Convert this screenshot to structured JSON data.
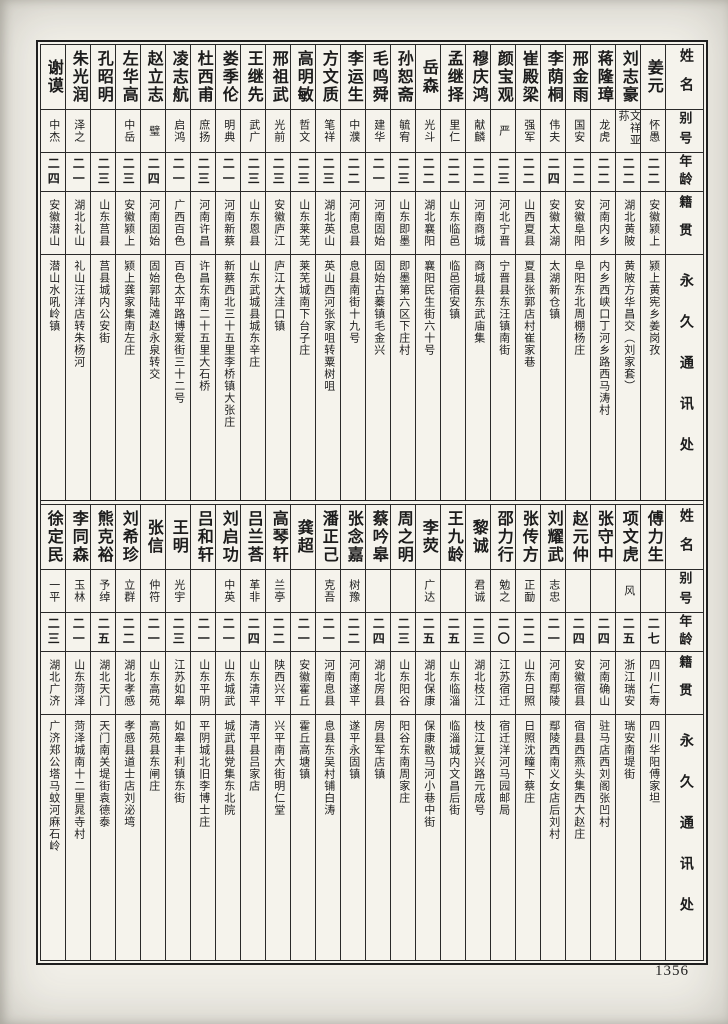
{
  "page": {
    "number": "1356"
  },
  "colors": {
    "ink": "#1c1c1c",
    "paper": "#f5f3ec"
  },
  "headers": {
    "name": "姓名",
    "alias": "别号",
    "age": "年龄",
    "native": "籍贯",
    "address": "永久通讯处"
  },
  "tables": [
    {
      "people": [
        {
          "name": "姜元",
          "alias": "怀愚",
          "age": "二二",
          "native": "安徽颍上",
          "address": "颍上黄宪乡姜岗孜"
        },
        {
          "name": "刘志豪",
          "alias": "文祥亚荪",
          "age": "二二",
          "native": "湖北黄陂",
          "address": "黄陂方华昌交（刘家套）"
        },
        {
          "name": "蒋隆璋",
          "alias": "龙虎",
          "age": "二二",
          "native": "河南内乡",
          "address": "内乡西峡口丁河乡路西马涛村"
        },
        {
          "name": "邢金雨",
          "alias": "国安",
          "age": "二二",
          "native": "安徽阜阳",
          "address": "阜阳东北周棚杨庄"
        },
        {
          "name": "李荫桐",
          "alias": "伟夫",
          "age": "二四",
          "native": "安徽太湖",
          "address": "太湖新仓镇"
        },
        {
          "name": "崔殿梁",
          "alias": "强军",
          "age": "二二",
          "native": "山西夏县",
          "address": "夏县张郭店村崔家巷"
        },
        {
          "name": "颜宝观",
          "alias": "严",
          "age": "二三",
          "native": "河北宁晋",
          "address": "宁晋县东汪镇南街"
        },
        {
          "name": "穆庆鸿",
          "alias": "献麟",
          "age": "二二",
          "native": "河南商城",
          "address": "商城县东武庙集"
        },
        {
          "name": "孟继择",
          "alias": "里仁",
          "age": "二二",
          "native": "山东临邑",
          "address": "临邑宿安镇"
        },
        {
          "name": "岳森",
          "alias": "光斗",
          "age": "二二",
          "native": "湖北襄阳",
          "address": "襄阳民生街六十号"
        },
        {
          "name": "孙恕斋",
          "alias": "毓宥",
          "age": "二三",
          "native": "山东即墨",
          "address": "即墨第六区下庄村"
        },
        {
          "name": "毛鸣舜",
          "alias": "建华",
          "age": "二一",
          "native": "河南固始",
          "address": "固始古蓁镇毛金兴"
        },
        {
          "name": "李运生",
          "alias": "中濮",
          "age": "二二",
          "native": "河南息县",
          "address": "息县南街十九号"
        },
        {
          "name": "方文质",
          "alias": "笔祥",
          "age": "二三",
          "native": "湖北英山",
          "address": "英山西河张家咀转粟树咀"
        },
        {
          "name": "高明敏",
          "alias": "哲文",
          "age": "二三",
          "native": "山东莱芜",
          "address": "莱芜城南下台子庄"
        },
        {
          "name": "邢祖武",
          "alias": "光前",
          "age": "二三",
          "native": "安徽庐江",
          "address": "庐江大洼口镇"
        },
        {
          "name": "王继先",
          "alias": "武广",
          "age": "二三",
          "native": "山东恩县",
          "address": "山东武城县城东辛庄"
        },
        {
          "name": "娄季伦",
          "alias": "明典",
          "age": "二一",
          "native": "河南新蔡",
          "address": "新蔡西北三十五里李桥镇大张庄"
        },
        {
          "name": "杜西甫",
          "alias": "庶扬",
          "age": "二三",
          "native": "河南许昌",
          "address": "许昌东南二十五里大石桥"
        },
        {
          "name": "凌志航",
          "alias": "启鸿",
          "age": "二一",
          "native": "广西百色",
          "address": "百色太平路博爱街三十二号"
        },
        {
          "name": "赵立志",
          "alias": "璧",
          "age": "二四",
          "native": "河南固始",
          "address": "固始郭陆滩赵永泉转交"
        },
        {
          "name": "左华高",
          "alias": "中岳",
          "age": "二三",
          "native": "安徽颍上",
          "address": "颍上龚家集南左庄"
        },
        {
          "name": "孔昭明",
          "alias": "",
          "age": "二三",
          "native": "山东莒县",
          "address": "莒县城内公安街"
        },
        {
          "name": "朱光润",
          "alias": "泽之",
          "age": "二一",
          "native": "湖北礼山",
          "address": "礼山汪洋店转朱杨河"
        },
        {
          "name": "谢谟",
          "alias": "中杰",
          "age": "二四",
          "native": "安徽潜山",
          "address": "潜山水吼岭镇"
        }
      ]
    },
    {
      "people": [
        {
          "name": "傅力生",
          "alias": "",
          "age": "二七",
          "native": "四川仁寿",
          "address": "四川华阳傅家坦"
        },
        {
          "name": "项文虎",
          "alias": "风",
          "age": "二五",
          "native": "浙江瑞安",
          "address": "瑞安南堤街"
        },
        {
          "name": "张守中",
          "alias": "",
          "age": "二四",
          "native": "河南确山",
          "address": "驻马店西刘阁张凹村"
        },
        {
          "name": "赵元仲",
          "alias": "",
          "age": "二四",
          "native": "安徽宿县",
          "address": "宿县西燕头集西大赵庄"
        },
        {
          "name": "刘耀武",
          "alias": "志忠",
          "age": "二一",
          "native": "河南鄢陵",
          "address": "鄢陵西南义女店后刘村"
        },
        {
          "name": "张传方",
          "alias": "正勔",
          "age": "二二",
          "native": "山东日照",
          "address": "日照沈疃下蔡庄"
        },
        {
          "name": "邵力行",
          "alias": "勉之",
          "age": "二〇",
          "native": "江苏宿迁",
          "address": "宿迁洋河马园邮局"
        },
        {
          "name": "黎诚",
          "alias": "君诚",
          "age": "二三",
          "native": "湖北枝江",
          "address": "枝江复兴路元成号"
        },
        {
          "name": "王九龄",
          "alias": "",
          "age": "二五",
          "native": "山东临淄",
          "address": "临淄城内文昌后街"
        },
        {
          "name": "李荧",
          "alias": "广达",
          "age": "二五",
          "native": "湖北保康",
          "address": "保康敭马河小巷中街"
        },
        {
          "name": "周之明",
          "alias": "",
          "age": "二三",
          "native": "山东阳谷",
          "address": "阳谷东南周家庄"
        },
        {
          "name": "蔡吟皋",
          "alias": "",
          "age": "二四",
          "native": "湖北房县",
          "address": "房县军店镇"
        },
        {
          "name": "张念嘉",
          "alias": "树豫",
          "age": "二二",
          "native": "河南遂平",
          "address": "遂平永固镇"
        },
        {
          "name": "潘正己",
          "alias": "克吾",
          "age": "二一",
          "native": "河南息县",
          "address": "息县东吴村铺白涛"
        },
        {
          "name": "龚超",
          "alias": "",
          "age": "二一",
          "native": "安徽霍丘",
          "address": "霍丘高塘镇"
        },
        {
          "name": "高琴轩",
          "alias": "兰亭",
          "age": "二二",
          "native": "陕西兴平",
          "address": "兴平南大街明仁堂"
        },
        {
          "name": "吕兰荅",
          "alias": "革非",
          "age": "二四",
          "native": "山东清平",
          "address": "清平县吕家店"
        },
        {
          "name": "刘启功",
          "alias": "中英",
          "age": "二一",
          "native": "山东城武",
          "address": "城武县党集东北院"
        },
        {
          "name": "吕和轩",
          "alias": "",
          "age": "二一",
          "native": "山东平阴",
          "address": "平阴城北旧李博士庄"
        },
        {
          "name": "王明",
          "alias": "光宇",
          "age": "二三",
          "native": "江苏如皋",
          "address": "如皋丰利镇东街"
        },
        {
          "name": "张信",
          "alias": "仲符",
          "age": "二一",
          "native": "山东高苑",
          "address": "高苑县东闸庄"
        },
        {
          "name": "刘希珍",
          "alias": "立群",
          "age": "二二",
          "native": "湖北孝感",
          "address": "孝感县道士店刘泌塆"
        },
        {
          "name": "熊克裕",
          "alias": "予绰",
          "age": "二五",
          "native": "湖北天门",
          "address": "天门南关堤街袁德泰"
        },
        {
          "name": "李同森",
          "alias": "玉林",
          "age": "二一",
          "native": "山东菏泽",
          "address": "菏泽城南十二里晁寺村"
        },
        {
          "name": "徐定民",
          "alias": "一平",
          "age": "二三",
          "native": "湖北广济",
          "address": "广济郑公塔马蚊河麻石岭"
        }
      ]
    }
  ]
}
